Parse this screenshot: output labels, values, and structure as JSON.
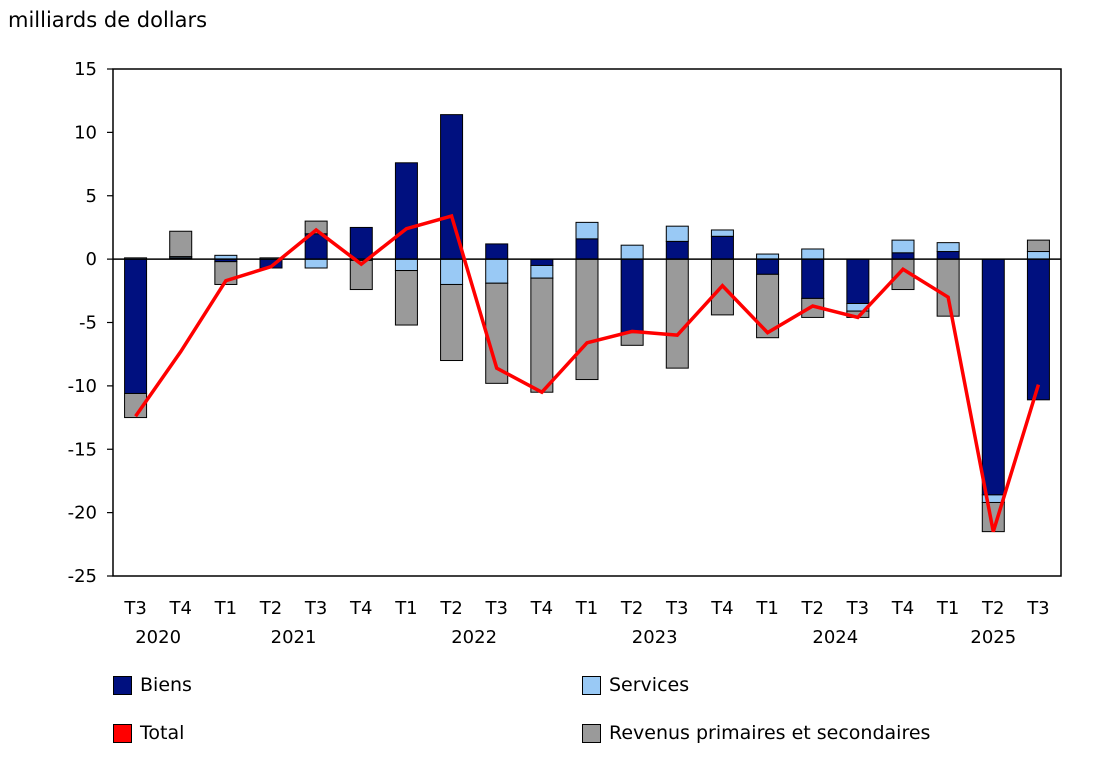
{
  "chart_data": {
    "type": "bar",
    "stacked": true,
    "ylabel": "milliards de dollars",
    "ylim": [
      -25,
      15
    ],
    "yticks": [
      15,
      10,
      5,
      0,
      -5,
      -10,
      -15,
      -20,
      -25
    ],
    "categories": [
      "T3",
      "T4",
      "T1",
      "T2",
      "T3",
      "T4",
      "T1",
      "T2",
      "T3",
      "T4",
      "T1",
      "T2",
      "T3",
      "T4",
      "T1",
      "T2",
      "T3",
      "T4",
      "T1",
      "T2",
      "T3"
    ],
    "years": [
      {
        "label": "2020",
        "start": 0,
        "end": 1
      },
      {
        "label": "2021",
        "start": 2,
        "end": 5
      },
      {
        "label": "2022",
        "start": 6,
        "end": 9
      },
      {
        "label": "2023",
        "start": 10,
        "end": 13
      },
      {
        "label": "2024",
        "start": 14,
        "end": 17
      },
      {
        "label": "2025",
        "start": 18,
        "end": 20
      }
    ],
    "series": [
      {
        "name": "Biens",
        "color": "#00107f",
        "values": [
          -10.6,
          0.1,
          -0.2,
          -0.7,
          2.0,
          2.5,
          7.6,
          11.4,
          1.2,
          -0.5,
          1.6,
          -5.8,
          1.4,
          1.8,
          -1.2,
          -3.1,
          -3.5,
          0.5,
          0.6,
          -18.6,
          -11.1
        ]
      },
      {
        "name": "Services",
        "color": "#99c9f5",
        "values": [
          0.1,
          0.1,
          0.3,
          0.1,
          -0.7,
          -0.1,
          -0.9,
          -2.0,
          -1.9,
          -1.0,
          1.3,
          1.1,
          1.2,
          0.5,
          0.4,
          0.8,
          -0.6,
          1.0,
          0.7,
          -0.6,
          0.6
        ]
      },
      {
        "name": "Revenus primaires et secondaires",
        "color": "#9a9a9a",
        "values": [
          -1.9,
          2.0,
          -1.8,
          0.0,
          1.0,
          -2.3,
          -4.3,
          -6.0,
          -7.9,
          -9.0,
          -9.5,
          -1.0,
          -8.6,
          -4.4,
          -5.0,
          -1.5,
          -0.5,
          -2.4,
          -4.5,
          -2.3,
          0.9
        ]
      },
      {
        "name": "Total",
        "color": "#ff0000",
        "type": "line",
        "values": [
          -12.4,
          -7.3,
          -1.7,
          -0.6,
          2.3,
          -0.4,
          2.4,
          3.4,
          -8.6,
          -10.5,
          -6.6,
          -5.7,
          -6.0,
          -2.1,
          -5.8,
          -3.7,
          -4.6,
          -0.8,
          -3.0,
          -21.5,
          -9.9
        ]
      }
    ],
    "legend": [
      {
        "name": "Biens",
        "color": "#00107f"
      },
      {
        "name": "Services",
        "color": "#99c9f5"
      },
      {
        "name": "Total",
        "color": "#ff0000"
      },
      {
        "name": "Revenus primaires et secondaires",
        "color": "#9a9a9a"
      }
    ],
    "grid": false
  }
}
